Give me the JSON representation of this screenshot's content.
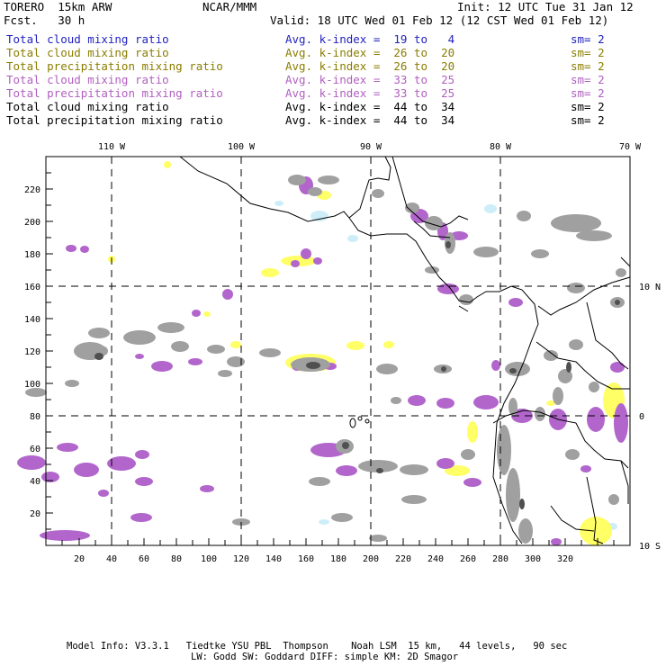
{
  "header": {
    "model_line": "TORERO  15km ARW",
    "org": "NCAR/MMM",
    "init": "Init: 12 UTC Tue 31 Jan 12",
    "fcst": "Fcst.   30 h",
    "valid": "Valid: 18 UTC Wed 01 Feb 12 (12 CST Wed 01 Feb 12)"
  },
  "legend": [
    {
      "field": "Total cloud mixing ratio",
      "kindex": "Avg. k-index =  19 to   4",
      "sm": "sm= 2",
      "color": "#1f1fbf"
    },
    {
      "field": "Total cloud mixing ratio",
      "kindex": "Avg. k-index =  26 to  20",
      "sm": "sm= 2",
      "color": "#8a7d00"
    },
    {
      "field": "Total precipitation mixing ratio",
      "kindex": "Avg. k-index =  26 to  20",
      "sm": "sm= 2",
      "color": "#8a7d00"
    },
    {
      "field": "Total cloud mixing ratio",
      "kindex": "Avg. k-index =  33 to  25",
      "sm": "sm= 2",
      "color": "#b060c0"
    },
    {
      "field": "Total precipitation mixing ratio",
      "kindex": "Avg. k-index =  33 to  25",
      "sm": "sm= 2",
      "color": "#b060c0"
    },
    {
      "field": "Total cloud mixing ratio",
      "kindex": "Avg. k-index =  44 to  34",
      "sm": "sm= 2",
      "color": "#000000"
    },
    {
      "field": "Total precipitation mixing ratio",
      "kindex": "Avg. k-index =  44 to  34",
      "sm": "sm= 2",
      "color": "#000000"
    }
  ],
  "top_lon_labels": [
    "110 W",
    "100 W",
    "90 W",
    "80 W",
    "70 W"
  ],
  "right_lat_labels": [
    "10 N",
    "0",
    "10 S"
  ],
  "x_ticks": [
    "20",
    "40",
    "60",
    "80",
    "100",
    "120",
    "140",
    "160",
    "180",
    "200",
    "220",
    "240",
    "260",
    "280",
    "300",
    "320"
  ],
  "y_ticks": [
    "20",
    "40",
    "60",
    "80",
    "100",
    "120",
    "140",
    "160",
    "180",
    "200",
    "220"
  ],
  "footer": {
    "line1": "Model Info: V3.3.1   Tiedtke YSU PBL  Thompson    Noah LSM  15 km,   44 levels,   90 sec",
    "line2": "LW: Godd SW: Goddard DIFF: simple KM: 2D Smagor"
  },
  "colors": {
    "cloud_light": "#cdeef8",
    "cloud_yellow": "#ffff66",
    "purple": "#b266cc",
    "gray": "#a0a0a0",
    "dark": "#404040"
  }
}
